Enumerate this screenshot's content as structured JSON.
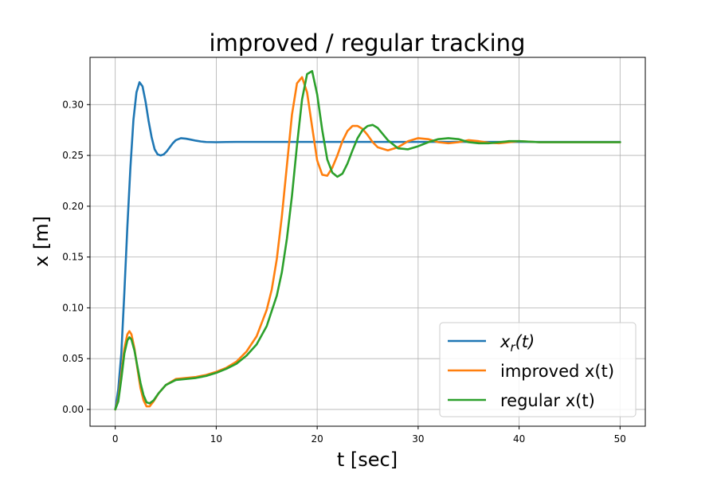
{
  "chart_data": {
    "type": "line",
    "title": "improved / regular tracking",
    "xlabel": "t [sec]",
    "ylabel": "x [m]",
    "xlim": [
      -2.5,
      52.5
    ],
    "ylim": [
      -0.0165,
      0.3465
    ],
    "xticks": [
      0,
      10,
      20,
      30,
      40,
      50
    ],
    "xtick_labels": [
      "0",
      "10",
      "20",
      "30",
      "40",
      "50"
    ],
    "yticks": [
      0.0,
      0.05,
      0.1,
      0.15,
      0.2,
      0.25,
      0.3
    ],
    "ytick_labels": [
      "0.00",
      "0.05",
      "0.10",
      "0.15",
      "0.20",
      "0.25",
      "0.30"
    ],
    "grid": true,
    "legend_position": "lower-right",
    "series": [
      {
        "name": "x_r(t)",
        "legend_base": "x",
        "legend_sub": "r",
        "legend_rest": "(t)",
        "color": "#1f77b4",
        "x": [
          0,
          0.3,
          0.6,
          0.9,
          1.2,
          1.5,
          1.8,
          2.1,
          2.4,
          2.7,
          3.0,
          3.3,
          3.6,
          3.9,
          4.2,
          4.5,
          4.8,
          5.1,
          5.4,
          5.7,
          6.0,
          6.5,
          7.0,
          7.5,
          8.0,
          8.5,
          9.0,
          10,
          11,
          12,
          15,
          20,
          25,
          30,
          35,
          40,
          45,
          50
        ],
        "y": [
          0.0,
          0.02,
          0.055,
          0.115,
          0.18,
          0.238,
          0.285,
          0.312,
          0.322,
          0.318,
          0.303,
          0.284,
          0.268,
          0.256,
          0.251,
          0.25,
          0.251,
          0.254,
          0.258,
          0.262,
          0.265,
          0.267,
          0.2665,
          0.2655,
          0.2645,
          0.2637,
          0.2632,
          0.263,
          0.2632,
          0.2633,
          0.2633,
          0.2633,
          0.2633,
          0.2633,
          0.2633,
          0.2633,
          0.2633,
          0.2633
        ]
      },
      {
        "name": "improved x(t)",
        "color": "#ff7f0e",
        "x": [
          0,
          0.3,
          0.6,
          0.9,
          1.2,
          1.4,
          1.6,
          1.9,
          2.2,
          2.5,
          2.8,
          3.1,
          3.4,
          3.8,
          4.3,
          5.0,
          6.0,
          7.0,
          8.0,
          9.0,
          10,
          11,
          12,
          13,
          14,
          15,
          15.5,
          16,
          16.5,
          17,
          17.5,
          18,
          18.5,
          19,
          19.5,
          20,
          20.5,
          21,
          21.5,
          22,
          22.5,
          23,
          23.5,
          24,
          24.5,
          25,
          25.5,
          26,
          27,
          28,
          29,
          30,
          31,
          32,
          33,
          34,
          35,
          36,
          37,
          38,
          39,
          40,
          42,
          44,
          46,
          48,
          50
        ],
        "y": [
          0.0,
          0.01,
          0.035,
          0.06,
          0.074,
          0.077,
          0.074,
          0.06,
          0.04,
          0.021,
          0.009,
          0.003,
          0.003,
          0.008,
          0.016,
          0.024,
          0.03,
          0.031,
          0.032,
          0.034,
          0.037,
          0.041,
          0.047,
          0.057,
          0.072,
          0.098,
          0.118,
          0.148,
          0.19,
          0.24,
          0.29,
          0.321,
          0.327,
          0.312,
          0.278,
          0.245,
          0.231,
          0.23,
          0.238,
          0.25,
          0.264,
          0.274,
          0.279,
          0.279,
          0.276,
          0.27,
          0.263,
          0.258,
          0.255,
          0.258,
          0.264,
          0.267,
          0.266,
          0.263,
          0.262,
          0.263,
          0.265,
          0.264,
          0.2625,
          0.262,
          0.263,
          0.264,
          0.263,
          0.263,
          0.263,
          0.263,
          0.263
        ]
      },
      {
        "name": "regular x(t)",
        "color": "#2ca02c",
        "x": [
          0,
          0.3,
          0.6,
          0.9,
          1.2,
          1.4,
          1.6,
          1.9,
          2.2,
          2.5,
          2.8,
          3.1,
          3.4,
          3.8,
          4.3,
          5.0,
          6.0,
          7.0,
          8.0,
          9.0,
          10,
          11,
          12,
          13,
          14,
          15,
          16,
          16.5,
          17,
          17.5,
          18,
          18.5,
          19,
          19.5,
          20,
          20.5,
          21,
          21.5,
          22,
          22.5,
          23,
          23.5,
          24,
          24.5,
          25,
          25.5,
          26,
          26.5,
          27,
          28,
          29,
          30,
          31,
          32,
          33,
          34,
          35,
          36,
          37,
          38,
          39,
          40,
          42,
          44,
          46,
          48,
          50
        ],
        "y": [
          0.0,
          0.008,
          0.03,
          0.055,
          0.068,
          0.071,
          0.069,
          0.058,
          0.042,
          0.026,
          0.014,
          0.007,
          0.006,
          0.009,
          0.016,
          0.024,
          0.029,
          0.03,
          0.031,
          0.033,
          0.036,
          0.04,
          0.045,
          0.053,
          0.064,
          0.082,
          0.112,
          0.135,
          0.168,
          0.21,
          0.26,
          0.305,
          0.33,
          0.333,
          0.31,
          0.275,
          0.246,
          0.233,
          0.229,
          0.232,
          0.242,
          0.255,
          0.267,
          0.275,
          0.279,
          0.28,
          0.277,
          0.271,
          0.265,
          0.257,
          0.256,
          0.259,
          0.263,
          0.266,
          0.267,
          0.266,
          0.263,
          0.262,
          0.262,
          0.263,
          0.264,
          0.264,
          0.263,
          0.263,
          0.263,
          0.263,
          0.263
        ]
      }
    ]
  }
}
